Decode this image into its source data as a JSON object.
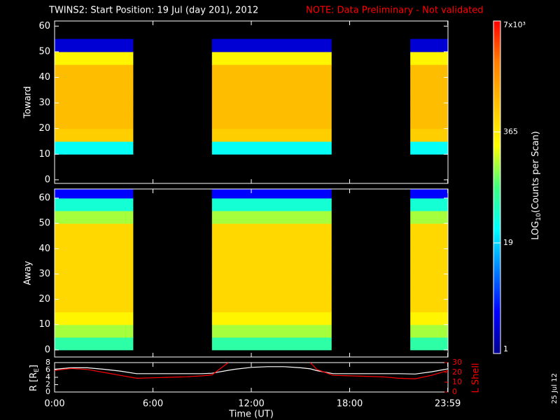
{
  "chart_data": {
    "type": "spectrogram",
    "title": "TWINS2: Start Position: 19 Jul (day 201), 2012",
    "note": "NOTE: Data Preliminary - Not validated",
    "note_color": "#ff0000",
    "xlim": [
      0,
      24
    ],
    "xticks": [
      {
        "value": 0,
        "label": "0:00"
      },
      {
        "value": 6,
        "label": "6:00"
      },
      {
        "value": 12,
        "label": "12:00"
      },
      {
        "value": 18,
        "label": "18:00"
      },
      {
        "value": 23.983,
        "label": "23:59"
      }
    ],
    "xlabel": "Time (UT)",
    "intervals": [
      [
        0,
        4.8
      ],
      [
        9.6,
        16.9
      ],
      [
        21.7,
        24
      ]
    ],
    "ybins": [
      0,
      5,
      10,
      15,
      20,
      25,
      30,
      35,
      40,
      45,
      50,
      55,
      60,
      65
    ],
    "panels": [
      {
        "label": "Toward",
        "ylim": [
          -1.4,
          62
        ],
        "yticks": [
          0,
          10,
          20,
          30,
          40,
          50,
          60
        ],
        "z": [
          null,
          null,
          30,
          600,
          800,
          800,
          800,
          800,
          800,
          300,
          2,
          null,
          null
        ]
      },
      {
        "label": "Away",
        "ylim": [
          -2.8,
          63.6
        ],
        "yticks": [
          0,
          10,
          20,
          30,
          40,
          50,
          60
        ],
        "z": [
          60,
          150,
          300,
          500,
          500,
          500,
          500,
          500,
          500,
          500,
          150,
          40,
          3
        ]
      }
    ],
    "colorbar": {
      "scale": "log",
      "lim": [
        1,
        7000
      ],
      "ticks": [
        1,
        19,
        365,
        {
          "value": 7000,
          "label": "7x10³"
        }
      ],
      "label_main": "LOG",
      "label_sub": "10",
      "label_rest": "(Counts per Scan)",
      "colors": [
        "#00008f",
        "#0000ff",
        "#0080ff",
        "#00ffff",
        "#40ff80",
        "#ffff00",
        "#ffc000",
        "#ff8000",
        "#ff0000"
      ]
    },
    "orbit": {
      "x": [
        0,
        1,
        2,
        3,
        4,
        5,
        6,
        7,
        8,
        9,
        9.6,
        10.6,
        11,
        12,
        13,
        14,
        15,
        15.6,
        16,
        17,
        18,
        19,
        20,
        21,
        22,
        23,
        24
      ],
      "ylim": [
        0,
        8
      ],
      "yticks": [
        0,
        2,
        4,
        6,
        8
      ],
      "y2lim": [
        0,
        30
      ],
      "y2ticks": [
        0,
        10,
        20,
        30
      ],
      "ylabel_main": "R [R",
      "ylabel_sub": "E",
      "ylabel_end": "]",
      "y2label": "L Shell",
      "y2color": "#ff0000",
      "series": [
        {
          "color": "#ffffff",
          "values": [
            6.2,
            6.6,
            6.6,
            6.2,
            5.7,
            5.0,
            5.0,
            5.0,
            5.0,
            5.0,
            5.1,
            5.9,
            6.2,
            6.7,
            6.9,
            6.9,
            6.6,
            6.3,
            5.8,
            5.0,
            5.0,
            5.0,
            5.0,
            5.0,
            4.9,
            5.5,
            6.3
          ]
        },
        {
          "color": "#ff0000",
          "axis": "y2",
          "values": [
            22,
            24,
            23,
            20,
            17,
            14,
            14.5,
            15,
            15.5,
            16.5,
            17.5,
            30,
            null,
            null,
            null,
            null,
            null,
            30,
            23,
            17,
            16.5,
            16,
            15.5,
            14,
            13.5,
            17,
            22
          ]
        }
      ]
    },
    "date_stamp": "25 Jul 12"
  }
}
